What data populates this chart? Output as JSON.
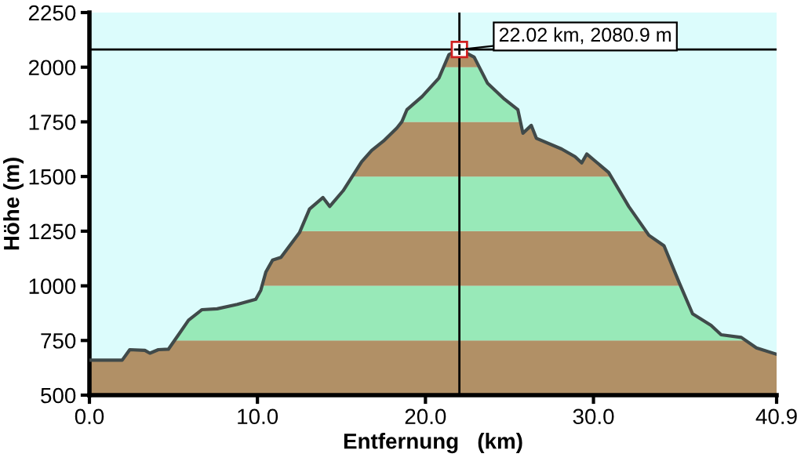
{
  "chart_data": {
    "type": "area",
    "xlabel": "Entfernung   (km)",
    "ylabel": "Höhe (m)",
    "xlim": [
      0,
      40.9
    ],
    "xticks": [
      {
        "value": 0,
        "label": "0.0"
      },
      {
        "value": 10,
        "label": "10.0"
      },
      {
        "value": 20,
        "label": "20.0"
      },
      {
        "value": 30,
        "label": "30.0"
      },
      40.9
    ],
    "ylim": [
      500,
      2250
    ],
    "yticks": [
      500,
      750,
      1000,
      1250,
      1500,
      1750,
      2000,
      2250
    ],
    "grid": false,
    "series": [
      {
        "color": "#404a4a",
        "x": [
          0,
          1.95,
          2.4,
          3.3,
          3.6,
          4.1,
          4.7,
          5.3,
          5.9,
          6.7,
          7.6,
          8.8,
          9.9,
          10.2,
          10.5,
          10.9,
          11.4,
          12.5,
          13.1,
          13.9,
          14.3,
          15.1,
          16.2,
          16.8,
          17.5,
          18.3,
          18.6,
          18.9,
          19.8,
          20.8,
          21.4,
          22.02,
          22.9,
          23.7,
          24.7,
          25.5,
          25.8,
          26.3,
          26.6,
          28.1,
          28.9,
          29.3,
          29.6,
          30.9,
          32.1,
          33.3,
          34.2,
          35.1,
          35.9,
          37.0,
          37.6,
          38.8,
          39.7,
          40.9
        ],
        "values": [
          660,
          660,
          708,
          705,
          692,
          708,
          710,
          776,
          843,
          891,
          895,
          915,
          938,
          980,
          1063,
          1118,
          1130,
          1243,
          1351,
          1404,
          1363,
          1435,
          1567,
          1619,
          1662,
          1722,
          1751,
          1806,
          1866,
          1950,
          2058,
          2080.9,
          2046,
          1926,
          1854,
          1806,
          1698,
          1734,
          1675,
          1626,
          1591,
          1562,
          1603,
          1519,
          1363,
          1231,
          1183,
          1015,
          872,
          819,
          776,
          764,
          716,
          687
        ]
      }
    ],
    "bands": [
      {
        "axis": "y",
        "from": 500,
        "to": 750,
        "color": "#b89468"
      },
      {
        "axis": "y",
        "from": 750,
        "to": 1000,
        "color": "#9ef2be"
      },
      {
        "axis": "y",
        "from": 1000,
        "to": 1250,
        "color": "#b89468"
      },
      {
        "axis": "y",
        "from": 1250,
        "to": 1500,
        "color": "#9ef2be"
      },
      {
        "axis": "y",
        "from": 1500,
        "to": 1750,
        "color": "#b89468"
      },
      {
        "axis": "y",
        "from": 1750,
        "to": 2000,
        "color": "#9ef2be"
      },
      {
        "axis": "y",
        "from": 2000,
        "to": 2250,
        "color": "#b89468"
      }
    ],
    "ref_lines": [
      {
        "axis": "x",
        "value": 22.02,
        "color": "#000000"
      },
      {
        "axis": "y",
        "value": 2080.9,
        "color": "#000000"
      }
    ],
    "annotations": [
      {
        "text": "22.02 km, 2080.9 m",
        "x": 22.02,
        "y": 2080.9
      }
    ]
  }
}
